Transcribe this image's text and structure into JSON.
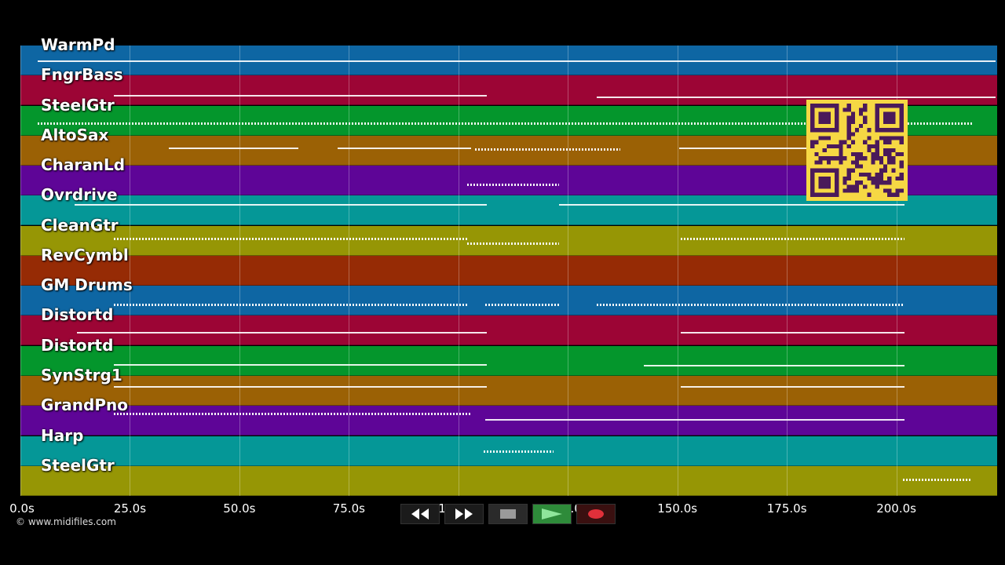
{
  "tracks": [
    {
      "name": "WarmPd",
      "color": "#0e66a3"
    },
    {
      "name": "FngrBass",
      "color": "#9c0535"
    },
    {
      "name": "SteelGtr",
      "color": "#04962c"
    },
    {
      "name": "AltoSax",
      "color": "#9b6105"
    },
    {
      "name": "CharanLd",
      "color": "#5e0597"
    },
    {
      "name": "Ovrdrive",
      "color": "#059797"
    },
    {
      "name": "CleanGtr",
      "color": "#969605"
    },
    {
      "name": "RevCymbl",
      "color": "#962b05"
    },
    {
      "name": "GM Drums",
      "color": "#0e66a3"
    },
    {
      "name": "Distortd",
      "color": "#9c0535"
    },
    {
      "name": "Distortd",
      "color": "#04962c"
    },
    {
      "name": "SynStrg1",
      "color": "#9b6105"
    },
    {
      "name": "GrandPno",
      "color": "#5e0597"
    },
    {
      "name": "Harp",
      "color": "#059797"
    },
    {
      "name": "SteelGtr",
      "color": "#969605"
    }
  ],
  "time_axis": {
    "ticks": [
      "0.0s",
      "25.0s",
      "50.0s",
      "75.0s",
      "100.0s",
      "125.0s",
      "150.0s",
      "175.0s",
      "200.0s"
    ]
  },
  "copyright": "© www.midifiles.com",
  "transport": {
    "buttons": [
      {
        "name": "rewind-icon"
      },
      {
        "name": "fast-forward-icon"
      },
      {
        "name": "stop-icon"
      },
      {
        "name": "play-icon",
        "color": "#2e8b3a"
      },
      {
        "name": "record-icon",
        "color": "#e0303a"
      }
    ]
  },
  "overlay": {
    "qr_code_color": "#f6d844",
    "qr_module_color": "#4a1a5a"
  }
}
